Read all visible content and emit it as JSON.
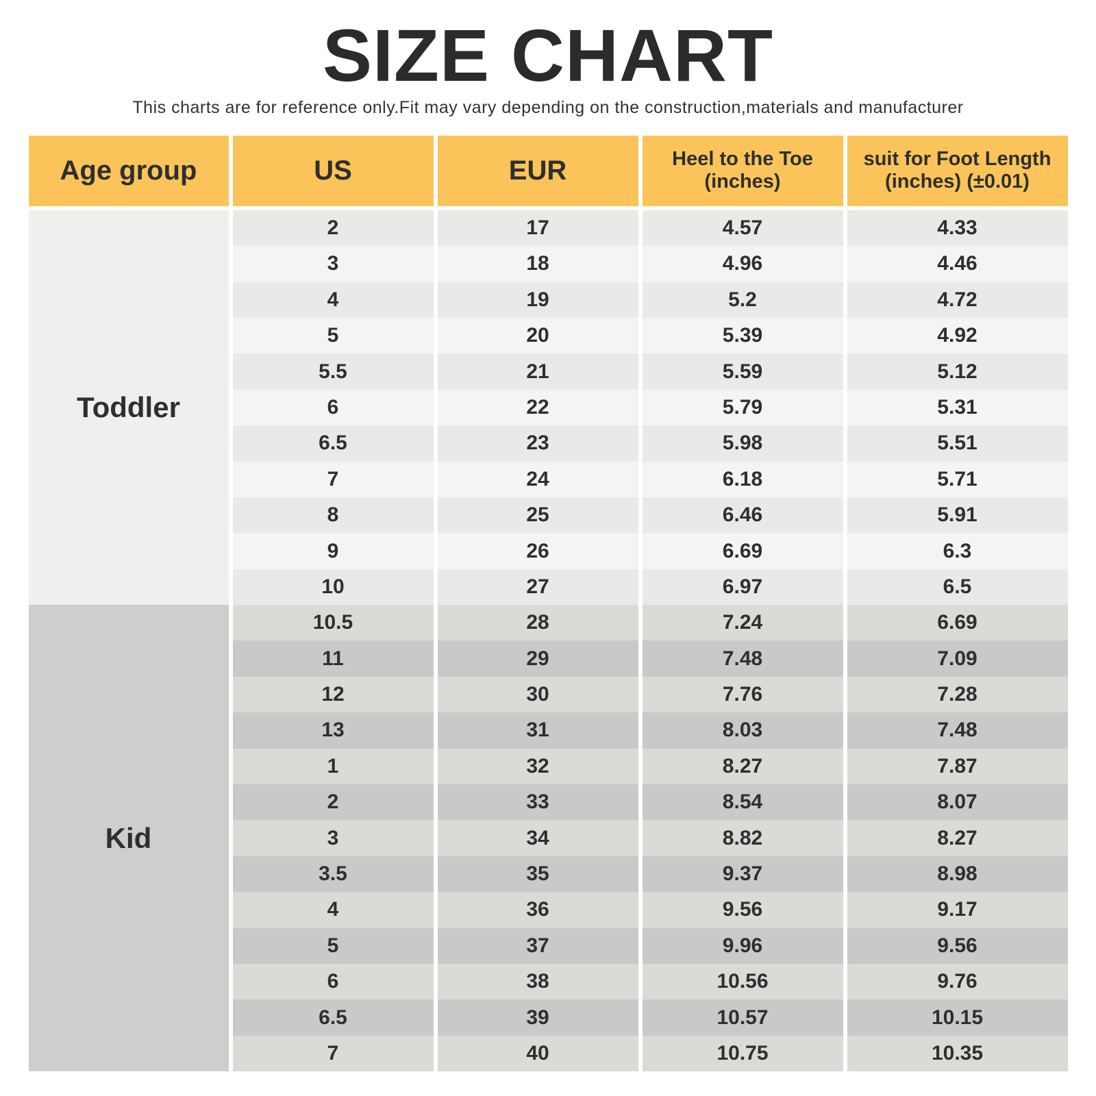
{
  "colors": {
    "header_bg": "#FBC45A",
    "toddler_group_bg": "#EFF0ED",
    "toddler_row_dark": "#E8EAE7",
    "toddler_row_light": "#F4F5F2",
    "kid_group_bg": "#CCCFCB",
    "kid_row_dark": "#C7CAC6",
    "kid_row_light": "#D9DBD7",
    "text": "#2E2F2E"
  },
  "chart_data": {
    "type": "table",
    "title": "SIZE CHART",
    "subtitle": "This charts are for reference only.Fit may vary depending on the construction,materials and manufacturer",
    "columns": [
      {
        "key": "age-group",
        "label": "Age group"
      },
      {
        "key": "us",
        "label": "US"
      },
      {
        "key": "eur",
        "label": "EUR"
      },
      {
        "key": "heel-to-toe",
        "label": "Heel to the Toe",
        "sub": "(inches)"
      },
      {
        "key": "foot-length",
        "label": "suit for Foot Length",
        "sub": "(inches) (±0.01)"
      }
    ],
    "groups": [
      {
        "name": "Toddler",
        "rows": [
          [
            "2",
            "17",
            "4.57",
            "4.33"
          ],
          [
            "3",
            "18",
            "4.96",
            "4.46"
          ],
          [
            "4",
            "19",
            "5.2",
            "4.72"
          ],
          [
            "5",
            "20",
            "5.39",
            "4.92"
          ],
          [
            "5.5",
            "21",
            "5.59",
            "5.12"
          ],
          [
            "6",
            "22",
            "5.79",
            "5.31"
          ],
          [
            "6.5",
            "23",
            "5.98",
            "5.51"
          ],
          [
            "7",
            "24",
            "6.18",
            "5.71"
          ],
          [
            "8",
            "25",
            "6.46",
            "5.91"
          ],
          [
            "9",
            "26",
            "6.69",
            "6.3"
          ],
          [
            "10",
            "27",
            "6.97",
            "6.5"
          ]
        ]
      },
      {
        "name": "Kid",
        "rows": [
          [
            "10.5",
            "28",
            "7.24",
            "6.69"
          ],
          [
            "11",
            "29",
            "7.48",
            "7.09"
          ],
          [
            "12",
            "30",
            "7.76",
            "7.28"
          ],
          [
            "13",
            "31",
            "8.03",
            "7.48"
          ],
          [
            "1",
            "32",
            "8.27",
            "7.87"
          ],
          [
            "2",
            "33",
            "8.54",
            "8.07"
          ],
          [
            "3",
            "34",
            "8.82",
            "8.27"
          ],
          [
            "3.5",
            "35",
            "9.37",
            "8.98"
          ],
          [
            "4",
            "36",
            "9.56",
            "9.17"
          ],
          [
            "5",
            "37",
            "9.96",
            "9.56"
          ],
          [
            "6",
            "38",
            "10.56",
            "9.76"
          ],
          [
            "6.5",
            "39",
            "10.57",
            "10.15"
          ],
          [
            "7",
            "40",
            "10.75",
            "10.35"
          ]
        ]
      }
    ]
  }
}
